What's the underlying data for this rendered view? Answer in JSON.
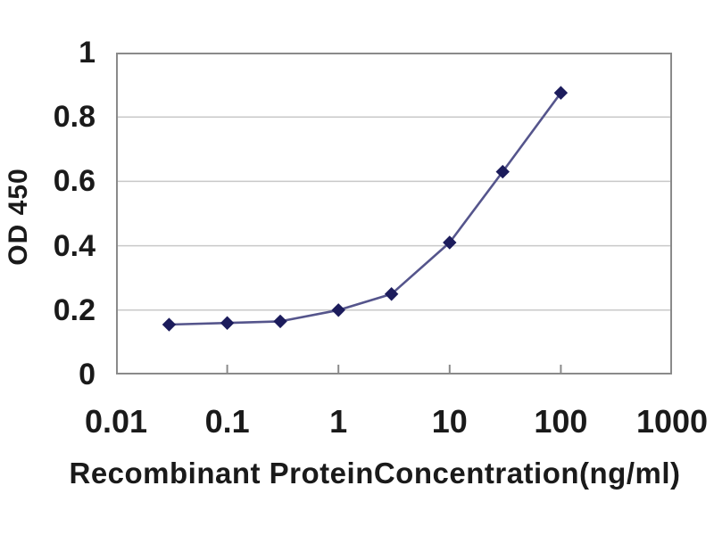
{
  "chart_data": {
    "type": "line",
    "title": "",
    "xlabel": "Recombinant ProteinConcentration(ng/ml)",
    "ylabel": "OD 450",
    "x_scale": "log",
    "xlim": [
      0.01,
      1000
    ],
    "ylim": [
      0,
      1
    ],
    "x_ticks": [
      "0.01",
      "0.1",
      "1",
      "10",
      "100",
      "1000"
    ],
    "y_ticks": [
      "0",
      "0.2",
      "0.4",
      "0.6",
      "0.8",
      "1"
    ],
    "grid": true,
    "legend": "none",
    "series": [
      {
        "name": "OD450",
        "marker": "diamond",
        "x": [
          0.03,
          0.1,
          0.3,
          1,
          3,
          10,
          30,
          100
        ],
        "values": [
          0.155,
          0.16,
          0.165,
          0.2,
          0.25,
          0.41,
          0.63,
          0.875
        ]
      }
    ],
    "colors": {
      "line": "#55558c",
      "marker": "#1c1c5c",
      "grid": "#c9c9c9",
      "frame": "#8a8a8a",
      "text": "#1a1a1a",
      "background": "#ffffff"
    }
  }
}
